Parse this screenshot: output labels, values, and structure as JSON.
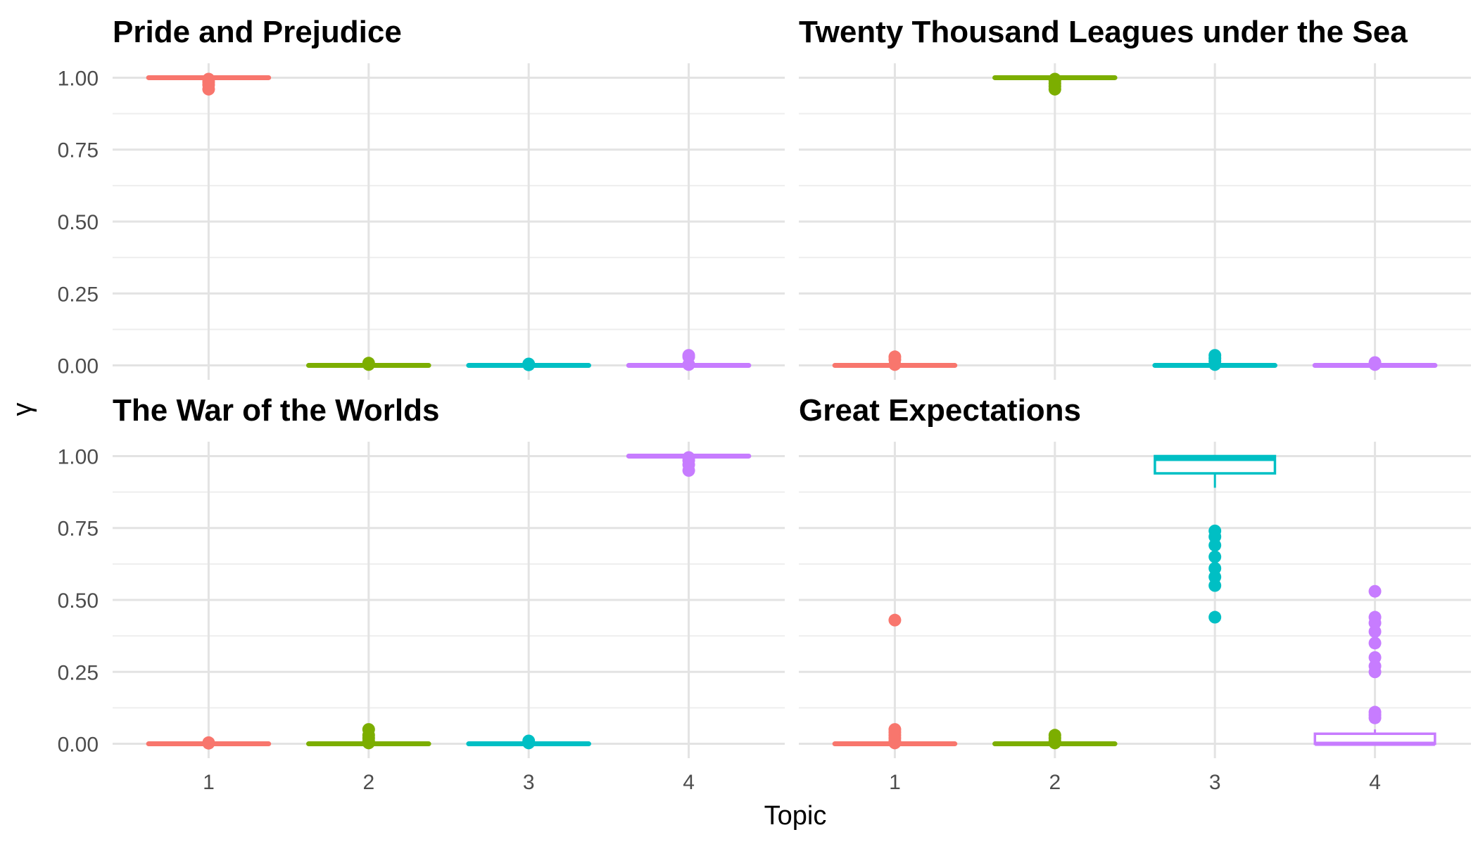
{
  "chart_data": {
    "type": "boxplot",
    "xlabel": "Topic",
    "ylabel": "γ",
    "ylim": [
      0,
      1
    ],
    "y_ticks": [
      "0.00",
      "0.25",
      "0.50",
      "0.75",
      "1.00"
    ],
    "x_ticks": [
      "1",
      "2",
      "3",
      "4"
    ],
    "grid": true,
    "legend": "none",
    "topic_colors": [
      "#F8766D",
      "#7CAE00",
      "#00BFC4",
      "#C77CFF"
    ],
    "panels": [
      {
        "title": "Pride and Prejudice",
        "boxes": [
          {
            "topic": "1",
            "q1": 1.0,
            "median": 1.0,
            "q3": 1.0,
            "whisker_low": 1.0,
            "whisker_high": 1.0,
            "outliers": [
              0.96,
              0.975,
              0.985,
              0.995
            ]
          },
          {
            "topic": "2",
            "q1": 0.0,
            "median": 0.0,
            "q3": 0.0,
            "whisker_low": 0.0,
            "whisker_high": 0.0,
            "outliers": [
              0.003,
              0.008
            ]
          },
          {
            "topic": "3",
            "q1": 0.0,
            "median": 0.0,
            "q3": 0.0,
            "whisker_low": 0.0,
            "whisker_high": 0.0,
            "outliers": [
              0.002,
              0.005
            ]
          },
          {
            "topic": "4",
            "q1": 0.0,
            "median": 0.0,
            "q3": 0.0,
            "whisker_low": 0.0,
            "whisker_high": 0.0,
            "outliers": [
              0.003,
              0.03,
              0.035
            ]
          }
        ]
      },
      {
        "title": "Twenty Thousand Leagues under the Sea",
        "boxes": [
          {
            "topic": "1",
            "q1": 0.0,
            "median": 0.0,
            "q3": 0.0,
            "whisker_low": 0.0,
            "whisker_high": 0.0,
            "outliers": [
              0.003,
              0.02,
              0.03
            ]
          },
          {
            "topic": "2",
            "q1": 1.0,
            "median": 1.0,
            "q3": 1.0,
            "whisker_low": 1.0,
            "whisker_high": 1.0,
            "outliers": [
              0.96,
              0.97,
              0.98,
              0.99,
              0.995
            ]
          },
          {
            "topic": "3",
            "q1": 0.0,
            "median": 0.0,
            "q3": 0.0,
            "whisker_low": 0.0,
            "whisker_high": 0.0,
            "outliers": [
              0.003,
              0.015,
              0.025,
              0.035
            ]
          },
          {
            "topic": "4",
            "q1": 0.0,
            "median": 0.0,
            "q3": 0.0,
            "whisker_low": 0.0,
            "whisker_high": 0.0,
            "outliers": [
              0.003,
              0.01
            ]
          }
        ]
      },
      {
        "title": "The War of the Worlds",
        "boxes": [
          {
            "topic": "1",
            "q1": 0.0,
            "median": 0.0,
            "q3": 0.0,
            "whisker_low": 0.0,
            "whisker_high": 0.0,
            "outliers": [
              0.002,
              0.004
            ]
          },
          {
            "topic": "2",
            "q1": 0.0,
            "median": 0.0,
            "q3": 0.0,
            "whisker_low": 0.0,
            "whisker_high": 0.0,
            "outliers": [
              0.003,
              0.01,
              0.02,
              0.03,
              0.05
            ]
          },
          {
            "topic": "3",
            "q1": 0.0,
            "median": 0.0,
            "q3": 0.0,
            "whisker_low": 0.0,
            "whisker_high": 0.0,
            "outliers": [
              0.003,
              0.01
            ]
          },
          {
            "topic": "4",
            "q1": 1.0,
            "median": 1.0,
            "q3": 1.0,
            "whisker_low": 1.0,
            "whisker_high": 1.0,
            "outliers": [
              0.95,
              0.97,
              0.985,
              0.995
            ]
          }
        ]
      },
      {
        "title": "Great Expectations",
        "boxes": [
          {
            "topic": "1",
            "q1": 0.0,
            "median": 0.0,
            "q3": 0.0,
            "whisker_low": 0.0,
            "whisker_high": 0.0,
            "outliers": [
              0.003,
              0.01,
              0.02,
              0.03,
              0.04,
              0.05,
              0.43
            ]
          },
          {
            "topic": "2",
            "q1": 0.0,
            "median": 0.0,
            "q3": 0.0,
            "whisker_low": 0.0,
            "whisker_high": 0.0,
            "outliers": [
              0.003,
              0.01,
              0.02,
              0.03
            ]
          },
          {
            "topic": "3",
            "q1": 0.94,
            "median": 0.99,
            "q3": 1.0,
            "whisker_low": 0.89,
            "whisker_high": 1.0,
            "outliers": [
              0.44,
              0.55,
              0.58,
              0.61,
              0.65,
              0.69,
              0.72,
              0.74
            ]
          },
          {
            "topic": "4",
            "q1": 0.0,
            "median": 0.0,
            "q3": 0.035,
            "whisker_low": 0.0,
            "whisker_high": 0.05,
            "outliers": [
              0.09,
              0.1,
              0.11,
              0.25,
              0.27,
              0.3,
              0.35,
              0.39,
              0.42,
              0.44,
              0.53
            ]
          }
        ]
      }
    ]
  }
}
